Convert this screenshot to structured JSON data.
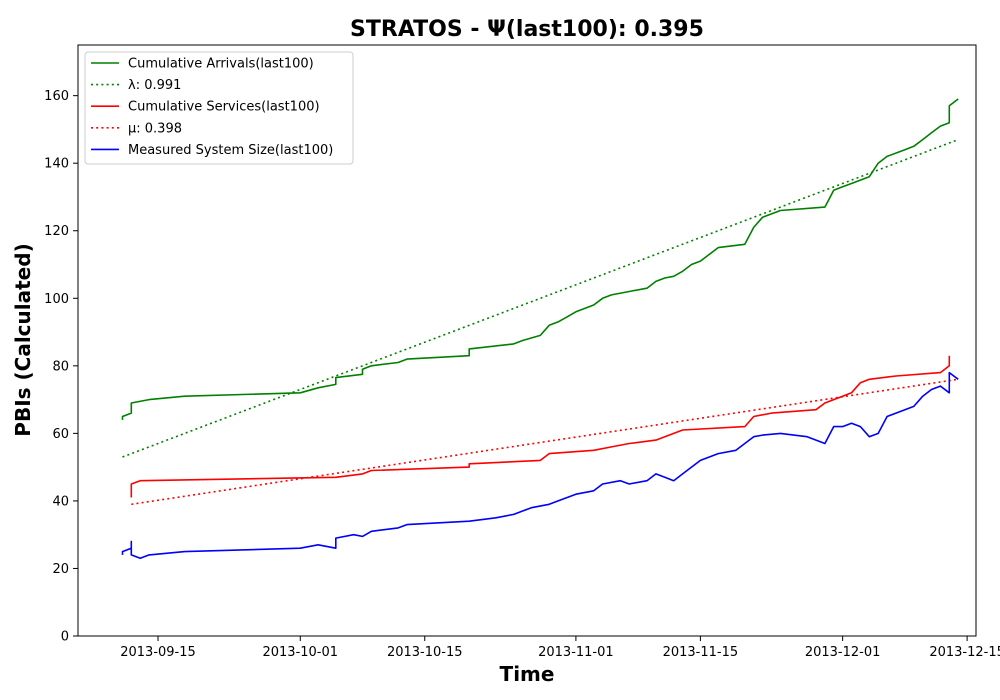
{
  "chart_data": {
    "type": "line",
    "title": "STRATOS -  Ψ(last100): 0.395",
    "xlabel": "Time",
    "ylabel": "PBIs (Calculated)",
    "xlim": [
      "2013-09-06",
      "2013-12-16"
    ],
    "ylim": [
      0,
      175
    ],
    "x_ticks": [
      "2013-09-15",
      "2013-10-01",
      "2013-10-15",
      "2013-11-01",
      "2013-11-15",
      "2013-12-01",
      "2013-12-15"
    ],
    "y_ticks": [
      0,
      20,
      40,
      60,
      80,
      100,
      120,
      140,
      160
    ],
    "grid": false,
    "legend_position": "top-left",
    "series": [
      {
        "name": "Cumulative Arrivals(last100)",
        "color": "#008000",
        "style": "solid",
        "points": [
          [
            "2013-09-11",
            64
          ],
          [
            "2013-09-11",
            65
          ],
          [
            "2013-09-12",
            66
          ],
          [
            "2013-09-12",
            69
          ],
          [
            "2013-09-14",
            70
          ],
          [
            "2013-09-18",
            71
          ],
          [
            "2013-10-01",
            72
          ],
          [
            "2013-10-03",
            73.5
          ],
          [
            "2013-10-05",
            74.5
          ],
          [
            "2013-10-05",
            76.5
          ],
          [
            "2013-10-08",
            77.5
          ],
          [
            "2013-10-08",
            79
          ],
          [
            "2013-10-09",
            80
          ],
          [
            "2013-10-12",
            81
          ],
          [
            "2013-10-13",
            82
          ],
          [
            "2013-10-20",
            83
          ],
          [
            "2013-10-20",
            85
          ],
          [
            "2013-10-25",
            86.5
          ],
          [
            "2013-10-26",
            87.5
          ],
          [
            "2013-10-28",
            89
          ],
          [
            "2013-10-29",
            92
          ],
          [
            "2013-10-30",
            93
          ],
          [
            "2013-10-31",
            94.5
          ],
          [
            "2013-11-01",
            96
          ],
          [
            "2013-11-02",
            97
          ],
          [
            "2013-11-03",
            98
          ],
          [
            "2013-11-04",
            100
          ],
          [
            "2013-11-05",
            101
          ],
          [
            "2013-11-07",
            102
          ],
          [
            "2013-11-09",
            103
          ],
          [
            "2013-11-10",
            105
          ],
          [
            "2013-11-11",
            106
          ],
          [
            "2013-11-12",
            106.5
          ],
          [
            "2013-11-13",
            108
          ],
          [
            "2013-11-14",
            110
          ],
          [
            "2013-11-15",
            111
          ],
          [
            "2013-11-16",
            113
          ],
          [
            "2013-11-17",
            115
          ],
          [
            "2013-11-20",
            116
          ],
          [
            "2013-11-21",
            121
          ],
          [
            "2013-11-22",
            124
          ],
          [
            "2013-11-23",
            125
          ],
          [
            "2013-11-24",
            126
          ],
          [
            "2013-11-29",
            127
          ],
          [
            "2013-11-30",
            132
          ],
          [
            "2013-12-01",
            133
          ],
          [
            "2013-12-02",
            134
          ],
          [
            "2013-12-03",
            135
          ],
          [
            "2013-12-04",
            136
          ],
          [
            "2013-12-05",
            140
          ],
          [
            "2013-12-06",
            142
          ],
          [
            "2013-12-08",
            144
          ],
          [
            "2013-12-09",
            145
          ],
          [
            "2013-12-10",
            147
          ],
          [
            "2013-12-11",
            149
          ],
          [
            "2013-12-12",
            151
          ],
          [
            "2013-12-13",
            152
          ],
          [
            "2013-12-13",
            157
          ],
          [
            "2013-12-14",
            159
          ]
        ]
      },
      {
        "name": "λ: 0.991",
        "color": "#008000",
        "style": "dotted",
        "points": [
          [
            "2013-09-11",
            53
          ],
          [
            "2013-12-14",
            147
          ]
        ]
      },
      {
        "name": "Cumulative Services(last100)",
        "color": "#ff0000",
        "style": "solid",
        "points": [
          [
            "2013-09-12",
            41
          ],
          [
            "2013-09-12",
            45
          ],
          [
            "2013-09-13",
            46
          ],
          [
            "2013-10-05",
            47
          ],
          [
            "2013-10-08",
            48
          ],
          [
            "2013-10-09",
            49
          ],
          [
            "2013-10-20",
            50
          ],
          [
            "2013-10-20",
            51
          ],
          [
            "2013-10-28",
            52
          ],
          [
            "2013-10-29",
            54
          ],
          [
            "2013-11-03",
            55
          ],
          [
            "2013-11-05",
            56
          ],
          [
            "2013-11-07",
            57
          ],
          [
            "2013-11-10",
            58
          ],
          [
            "2013-11-12",
            60
          ],
          [
            "2013-11-13",
            61
          ],
          [
            "2013-11-20",
            62
          ],
          [
            "2013-11-21",
            65
          ],
          [
            "2013-11-23",
            66
          ],
          [
            "2013-11-28",
            67
          ],
          [
            "2013-11-29",
            69
          ],
          [
            "2013-11-30",
            70
          ],
          [
            "2013-12-01",
            71
          ],
          [
            "2013-12-02",
            72
          ],
          [
            "2013-12-03",
            75
          ],
          [
            "2013-12-04",
            76
          ],
          [
            "2013-12-07",
            77
          ],
          [
            "2013-12-12",
            78
          ],
          [
            "2013-12-13",
            80
          ],
          [
            "2013-12-13",
            83
          ]
        ]
      },
      {
        "name": "μ: 0.398",
        "color": "#ff0000",
        "style": "dotted",
        "points": [
          [
            "2013-09-12",
            39
          ],
          [
            "2013-12-14",
            76
          ]
        ]
      },
      {
        "name": "Measured System Size(last100)",
        "color": "#0000ff",
        "style": "solid",
        "points": [
          [
            "2013-09-11",
            24
          ],
          [
            "2013-09-11",
            25
          ],
          [
            "2013-09-12",
            26
          ],
          [
            "2013-09-12",
            28
          ],
          [
            "2013-09-12",
            24
          ],
          [
            "2013-09-13",
            23
          ],
          [
            "2013-09-14",
            24
          ],
          [
            "2013-09-18",
            25
          ],
          [
            "2013-10-01",
            26
          ],
          [
            "2013-10-03",
            27
          ],
          [
            "2013-10-05",
            26
          ],
          [
            "2013-10-05",
            29
          ],
          [
            "2013-10-07",
            30
          ],
          [
            "2013-10-08",
            29.5
          ],
          [
            "2013-10-09",
            31
          ],
          [
            "2013-10-12",
            32
          ],
          [
            "2013-10-13",
            33
          ],
          [
            "2013-10-20",
            34
          ],
          [
            "2013-10-23",
            35
          ],
          [
            "2013-10-25",
            36
          ],
          [
            "2013-10-26",
            37
          ],
          [
            "2013-10-27",
            38
          ],
          [
            "2013-10-29",
            39
          ],
          [
            "2013-10-30",
            40
          ],
          [
            "2013-11-01",
            42
          ],
          [
            "2013-11-03",
            43
          ],
          [
            "2013-11-04",
            45
          ],
          [
            "2013-11-06",
            46
          ],
          [
            "2013-11-07",
            45
          ],
          [
            "2013-11-09",
            46
          ],
          [
            "2013-11-10",
            48
          ],
          [
            "2013-11-11",
            47
          ],
          [
            "2013-11-12",
            46
          ],
          [
            "2013-11-13",
            48
          ],
          [
            "2013-11-14",
            50
          ],
          [
            "2013-11-15",
            52
          ],
          [
            "2013-11-16",
            53
          ],
          [
            "2013-11-17",
            54
          ],
          [
            "2013-11-19",
            55
          ],
          [
            "2013-11-20",
            57
          ],
          [
            "2013-11-21",
            59
          ],
          [
            "2013-11-22",
            59.5
          ],
          [
            "2013-11-24",
            60
          ],
          [
            "2013-11-27",
            59
          ],
          [
            "2013-11-29",
            57
          ],
          [
            "2013-11-30",
            62
          ],
          [
            "2013-12-01",
            62
          ],
          [
            "2013-12-02",
            63
          ],
          [
            "2013-12-03",
            62
          ],
          [
            "2013-12-04",
            59
          ],
          [
            "2013-12-05",
            60
          ],
          [
            "2013-12-06",
            65
          ],
          [
            "2013-12-07",
            66
          ],
          [
            "2013-12-08",
            67
          ],
          [
            "2013-12-09",
            68
          ],
          [
            "2013-12-10",
            71
          ],
          [
            "2013-12-11",
            73
          ],
          [
            "2013-12-12",
            74
          ],
          [
            "2013-12-13",
            72
          ],
          [
            "2013-12-13",
            78
          ],
          [
            "2013-12-14",
            76
          ]
        ]
      }
    ]
  }
}
